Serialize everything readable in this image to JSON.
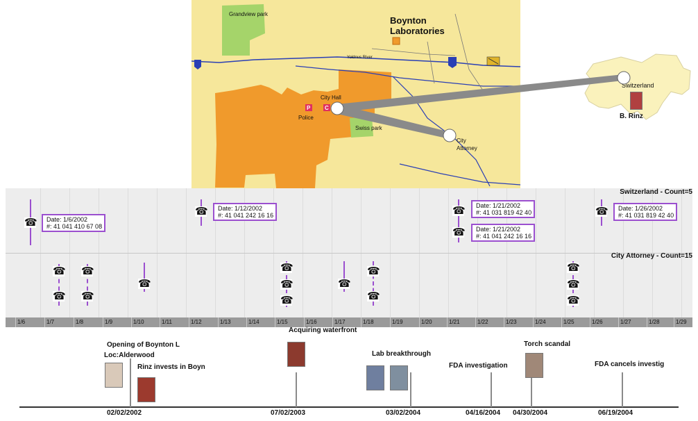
{
  "map": {
    "labels": {
      "grandview": "Grandview park",
      "boynton": "Boynton\nLaboratories",
      "river": "Yoldnus River",
      "city_hall": "City Hall",
      "police": "Police",
      "swiss_park": "Swiss park",
      "city_attorney": "City\nAttorney"
    },
    "colors": {
      "background": "#f6e79b",
      "district": "#f09a2c",
      "park": "#a5d46a",
      "road": "#2a3fb5",
      "link": "#8a8a8a"
    }
  },
  "switzerland": {
    "label": "Switzerland",
    "person": "B. Rinz"
  },
  "lanes": [
    {
      "title": "Switzerland - Count=5"
    },
    {
      "title": "City Attorney - Count=15"
    }
  ],
  "callouts": [
    {
      "date": "Date: 1/6/2002",
      "number": "#: 41 041 410 67 08"
    },
    {
      "date": "Date: 1/12/2002",
      "number": "#: 41 041 242 16 16"
    },
    {
      "date": "Date: 1/21/2002",
      "number": "#: 41 031 819 42 40"
    },
    {
      "date": "Date: 1/21/2002",
      "number": "#: 41 041 242 16 16"
    },
    {
      "date": "Date: 1/26/2002",
      "number": "#: 41 031 819 42 40"
    }
  ],
  "axis_ticks": [
    "1/6",
    "1/7",
    "1/8",
    "1/9",
    "1/10",
    "1/11",
    "1/12",
    "1/13",
    "1/14",
    "1/15",
    "1/16",
    "1/17",
    "1/18",
    "1/19",
    "1/20",
    "1/21",
    "1/22",
    "1/23",
    "1/24",
    "1/25",
    "1/26",
    "1/27",
    "1/28",
    "1/29"
  ],
  "phone_icon": "telephone-icon",
  "events": {
    "opening": "Opening of Boynton L",
    "loc": "Loc:Alderwood",
    "rinz": "Rinz invests in Boyn",
    "acquiring": "Acquiring waterfront",
    "lab": "Lab breakthrough",
    "fda_inv": "FDA investigation",
    "torch": "Torch scandal",
    "fda_cancel": "FDA cancels investig"
  },
  "dates": [
    "02/02/2002",
    "07/02/2003",
    "03/02/2004",
    "04/16/2004",
    "04/30/2004",
    "06/19/2004"
  ]
}
